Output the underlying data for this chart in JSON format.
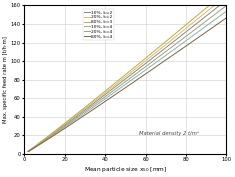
{
  "title": "",
  "xlabel": "Mean particle size x$_{50}$ [mm]",
  "ylabel": "Max. specific feed rate m [t/h·m]",
  "xlim": [
    0,
    100
  ],
  "ylim": [
    0,
    160
  ],
  "xticks": [
    0,
    20,
    40,
    60,
    80,
    100
  ],
  "yticks": [
    0,
    20,
    40,
    60,
    80,
    100,
    120,
    140,
    160
  ],
  "annotation": "Material density 2 t/m³",
  "params": [
    {
      "label": "10%, k=2",
      "color": "#888888",
      "a": 1.38,
      "b": 1.04
    },
    {
      "label": "20%, k=2",
      "color": "#d4bc6e",
      "a": 1.42,
      "b": 1.04
    },
    {
      "label": "80%, k=3",
      "color": "#c8a832",
      "a": 1.46,
      "b": 1.04
    },
    {
      "label": "10%, k=4",
      "color": "#8ab0b0",
      "a": 1.28,
      "b": 1.04
    },
    {
      "label": "20%, k=4",
      "color": "#a0a07a",
      "a": 1.33,
      "b": 1.04
    },
    {
      "label": "80%, k=4",
      "color": "#806040",
      "a": 1.22,
      "b": 1.04
    }
  ],
  "bg_color": "#ffffff",
  "grid_color": "#cccccc",
  "linewidth": 0.7
}
